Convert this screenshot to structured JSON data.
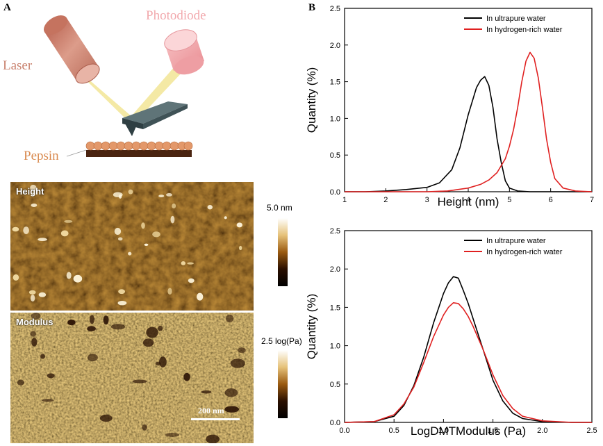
{
  "panels": {
    "a_label": "A",
    "b_label": "B"
  },
  "schematic": {
    "laser_label": "Laser",
    "photodiode_label": "Photodiode",
    "sample_label": "Pepsin",
    "laser_color": "#c9826e",
    "photodiode_color": "#f2a9ad",
    "sample_color": "#d98a4f"
  },
  "afm": {
    "height_label": "Height",
    "modulus_label": "Modulus",
    "height_scale_max": "5.0 nm",
    "modulus_scale_max": "2.5 log(Pa)",
    "scale_bar_label": "200 nm"
  },
  "chart_data": [
    {
      "type": "line",
      "xlabel": "Height (nm)",
      "ylabel": "Quantity (%)",
      "xlim": [
        1,
        7
      ],
      "ylim": [
        0,
        2.5
      ],
      "xticks": [
        "1",
        "2",
        "3",
        "4",
        "5",
        "6",
        "7"
      ],
      "yticks": [
        "0.0",
        "0.5",
        "1.0",
        "1.5",
        "2.0",
        "2.5"
      ],
      "legend_position": "top-right",
      "series": [
        {
          "name": "In ultrapure water",
          "color": "#000000",
          "x": [
            1.0,
            1.5,
            2.0,
            2.5,
            3.0,
            3.3,
            3.6,
            3.8,
            4.0,
            4.2,
            4.3,
            4.4,
            4.5,
            4.6,
            4.7,
            4.8,
            4.9,
            5.0,
            5.2,
            5.5,
            6.0,
            7.0
          ],
          "y": [
            0.0,
            0.0,
            0.01,
            0.03,
            0.06,
            0.12,
            0.3,
            0.6,
            1.05,
            1.42,
            1.52,
            1.57,
            1.45,
            1.15,
            0.72,
            0.4,
            0.15,
            0.05,
            0.01,
            0.0,
            0.0,
            0.0
          ]
        },
        {
          "name": "In hydrogen-rich water",
          "color": "#e02020",
          "x": [
            1.0,
            2.0,
            3.0,
            3.5,
            4.0,
            4.3,
            4.5,
            4.7,
            4.9,
            5.0,
            5.1,
            5.2,
            5.3,
            5.4,
            5.5,
            5.6,
            5.7,
            5.8,
            5.9,
            6.0,
            6.1,
            6.3,
            6.6,
            7.0
          ],
          "y": [
            0.0,
            0.0,
            0.0,
            0.01,
            0.05,
            0.1,
            0.16,
            0.26,
            0.45,
            0.62,
            0.85,
            1.15,
            1.5,
            1.78,
            1.9,
            1.82,
            1.55,
            1.15,
            0.72,
            0.4,
            0.18,
            0.05,
            0.01,
            0.0
          ]
        }
      ]
    },
    {
      "type": "line",
      "xlabel": "LogDMTModulus (Pa)",
      "ylabel": "Quantity (%)",
      "xlim": [
        0,
        2.5
      ],
      "ylim": [
        0,
        2.5
      ],
      "xticks": [
        "0.0",
        "0.5",
        "1.0",
        "1.5",
        "2.0",
        "2.5"
      ],
      "yticks": [
        "0.0",
        "0.5",
        "1.0",
        "1.5",
        "2.0",
        "2.5"
      ],
      "legend_position": "top-right",
      "series": [
        {
          "name": "In ultrapure water",
          "color": "#000000",
          "x": [
            0.0,
            0.3,
            0.5,
            0.6,
            0.7,
            0.8,
            0.9,
            1.0,
            1.05,
            1.1,
            1.15,
            1.2,
            1.25,
            1.3,
            1.4,
            1.5,
            1.6,
            1.7,
            1.8,
            2.0,
            2.3,
            2.5
          ],
          "y": [
            0.0,
            0.01,
            0.08,
            0.22,
            0.48,
            0.85,
            1.3,
            1.68,
            1.82,
            1.9,
            1.88,
            1.72,
            1.55,
            1.35,
            0.95,
            0.55,
            0.28,
            0.12,
            0.05,
            0.01,
            0.0,
            0.0
          ]
        },
        {
          "name": "In hydrogen-rich water",
          "color": "#e02020",
          "x": [
            0.0,
            0.3,
            0.5,
            0.6,
            0.7,
            0.8,
            0.9,
            1.0,
            1.05,
            1.1,
            1.15,
            1.2,
            1.25,
            1.3,
            1.4,
            1.5,
            1.6,
            1.7,
            1.8,
            2.0,
            2.3,
            2.5
          ],
          "y": [
            0.0,
            0.01,
            0.1,
            0.24,
            0.46,
            0.78,
            1.12,
            1.4,
            1.5,
            1.56,
            1.55,
            1.48,
            1.38,
            1.25,
            0.95,
            0.62,
            0.35,
            0.18,
            0.08,
            0.02,
            0.0,
            0.0
          ]
        }
      ]
    }
  ]
}
